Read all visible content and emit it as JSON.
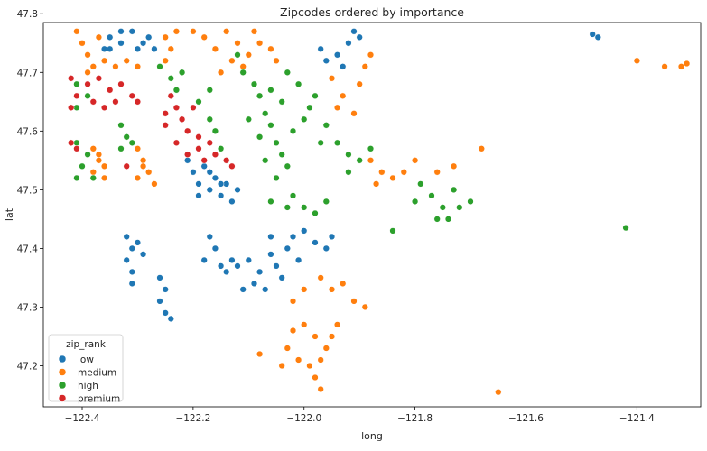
{
  "chart_data": {
    "type": "scatter",
    "title": "Zipcodes ordered by importance",
    "xlabel": "long",
    "ylabel": "lat",
    "xlim": [
      -122.47,
      -121.285
    ],
    "ylim": [
      47.13,
      47.785
    ],
    "xticks": [
      -122.4,
      -122.2,
      -122.0,
      -121.8,
      -121.6,
      -121.4
    ],
    "xtick_labels": [
      "−122.4",
      "−122.2",
      "−122.0",
      "−121.8",
      "−121.6",
      "−121.4"
    ],
    "yticks": [
      47.2,
      47.3,
      47.4,
      47.5,
      47.6,
      47.7,
      47.8
    ],
    "ytick_labels": [
      "47.2",
      "47.3",
      "47.4",
      "47.5",
      "47.6",
      "47.7",
      "47.8"
    ],
    "grid": false,
    "legend": {
      "title": "zip_rank",
      "position": "lower-left",
      "entries": [
        {
          "name": "low",
          "color": "#1f77b4"
        },
        {
          "name": "medium",
          "color": "#ff7f0e"
        },
        {
          "name": "high",
          "color": "#2ca02c"
        },
        {
          "name": "premium",
          "color": "#d62728"
        }
      ]
    },
    "series": [
      {
        "name": "low",
        "color": "#1f77b4",
        "points": [
          [
            -122.36,
            47.74
          ],
          [
            -122.35,
            47.76
          ],
          [
            -122.33,
            47.75
          ],
          [
            -122.31,
            47.77
          ],
          [
            -122.3,
            47.74
          ],
          [
            -122.28,
            47.76
          ],
          [
            -122.27,
            47.74
          ],
          [
            -122.29,
            47.75
          ],
          [
            -122.33,
            47.77
          ],
          [
            -122.35,
            47.74
          ],
          [
            -122.21,
            47.55
          ],
          [
            -122.2,
            47.53
          ],
          [
            -122.19,
            47.51
          ],
          [
            -122.18,
            47.54
          ],
          [
            -122.17,
            47.5
          ],
          [
            -122.16,
            47.52
          ],
          [
            -122.15,
            47.49
          ],
          [
            -122.14,
            47.51
          ],
          [
            -122.13,
            47.48
          ],
          [
            -122.12,
            47.5
          ],
          [
            -122.19,
            47.49
          ],
          [
            -122.17,
            47.53
          ],
          [
            -122.15,
            47.51
          ],
          [
            -122.32,
            47.42
          ],
          [
            -122.31,
            47.4
          ],
          [
            -122.32,
            47.38
          ],
          [
            -122.31,
            47.36
          ],
          [
            -122.3,
            47.41
          ],
          [
            -122.29,
            47.39
          ],
          [
            -122.31,
            47.34
          ],
          [
            -122.26,
            47.35
          ],
          [
            -122.25,
            47.33
          ],
          [
            -122.26,
            47.31
          ],
          [
            -122.25,
            47.29
          ],
          [
            -122.24,
            47.28
          ],
          [
            -122.17,
            47.42
          ],
          [
            -122.16,
            47.4
          ],
          [
            -122.18,
            47.38
          ],
          [
            -122.15,
            47.37
          ],
          [
            -122.14,
            47.36
          ],
          [
            -122.12,
            47.37
          ],
          [
            -122.1,
            47.38
          ],
          [
            -122.08,
            47.36
          ],
          [
            -122.06,
            47.39
          ],
          [
            -122.05,
            47.37
          ],
          [
            -122.04,
            47.35
          ],
          [
            -122.03,
            47.4
          ],
          [
            -122.02,
            47.42
          ],
          [
            -122.0,
            47.43
          ],
          [
            -121.98,
            47.41
          ],
          [
            -121.96,
            47.4
          ],
          [
            -122.09,
            47.34
          ],
          [
            -122.07,
            47.33
          ],
          [
            -122.11,
            47.33
          ],
          [
            -122.13,
            47.38
          ],
          [
            -122.01,
            47.38
          ],
          [
            -122.06,
            47.42
          ],
          [
            -121.95,
            47.42
          ],
          [
            -121.97,
            47.74
          ],
          [
            -121.96,
            47.72
          ],
          [
            -121.94,
            47.73
          ],
          [
            -121.92,
            47.75
          ],
          [
            -121.91,
            47.77
          ],
          [
            -121.9,
            47.76
          ],
          [
            -121.93,
            47.71
          ],
          [
            -121.48,
            47.765
          ],
          [
            -121.47,
            47.76
          ]
        ]
      },
      {
        "name": "medium",
        "color": "#ff7f0e",
        "points": [
          [
            -122.41,
            47.77
          ],
          [
            -122.4,
            47.75
          ],
          [
            -122.39,
            47.73
          ],
          [
            -122.38,
            47.71
          ],
          [
            -122.39,
            47.7
          ],
          [
            -122.37,
            47.76
          ],
          [
            -122.36,
            47.72
          ],
          [
            -122.34,
            47.71
          ],
          [
            -122.32,
            47.72
          ],
          [
            -122.3,
            47.71
          ],
          [
            -122.25,
            47.76
          ],
          [
            -122.24,
            47.74
          ],
          [
            -122.25,
            47.72
          ],
          [
            -122.23,
            47.77
          ],
          [
            -122.2,
            47.77
          ],
          [
            -122.18,
            47.76
          ],
          [
            -122.16,
            47.74
          ],
          [
            -122.14,
            47.77
          ],
          [
            -122.12,
            47.75
          ],
          [
            -122.1,
            47.73
          ],
          [
            -122.09,
            47.77
          ],
          [
            -122.08,
            47.75
          ],
          [
            -122.06,
            47.74
          ],
          [
            -122.05,
            47.72
          ],
          [
            -122.11,
            47.71
          ],
          [
            -122.13,
            47.72
          ],
          [
            -122.15,
            47.7
          ],
          [
            -122.38,
            47.57
          ],
          [
            -122.37,
            47.55
          ],
          [
            -122.38,
            47.53
          ],
          [
            -122.36,
            47.52
          ],
          [
            -122.37,
            47.56
          ],
          [
            -122.36,
            47.54
          ],
          [
            -122.3,
            47.57
          ],
          [
            -122.29,
            47.55
          ],
          [
            -122.28,
            47.53
          ],
          [
            -122.3,
            47.52
          ],
          [
            -122.27,
            47.51
          ],
          [
            -122.29,
            47.54
          ],
          [
            -121.95,
            47.69
          ],
          [
            -121.93,
            47.66
          ],
          [
            -121.9,
            47.68
          ],
          [
            -121.89,
            47.71
          ],
          [
            -121.91,
            47.63
          ],
          [
            -121.94,
            47.64
          ],
          [
            -121.88,
            47.73
          ],
          [
            -121.88,
            47.55
          ],
          [
            -121.86,
            47.53
          ],
          [
            -121.84,
            47.52
          ],
          [
            -121.82,
            47.53
          ],
          [
            -121.87,
            47.51
          ],
          [
            -121.8,
            47.55
          ],
          [
            -121.76,
            47.53
          ],
          [
            -121.73,
            47.54
          ],
          [
            -121.68,
            47.57
          ],
          [
            -122.0,
            47.33
          ],
          [
            -121.97,
            47.35
          ],
          [
            -121.95,
            47.33
          ],
          [
            -121.93,
            47.34
          ],
          [
            -121.91,
            47.31
          ],
          [
            -121.89,
            47.3
          ],
          [
            -122.02,
            47.31
          ],
          [
            -122.02,
            47.26
          ],
          [
            -122.0,
            47.27
          ],
          [
            -121.98,
            47.25
          ],
          [
            -122.03,
            47.23
          ],
          [
            -122.01,
            47.21
          ],
          [
            -121.99,
            47.2
          ],
          [
            -122.04,
            47.2
          ],
          [
            -121.97,
            47.21
          ],
          [
            -121.96,
            47.23
          ],
          [
            -121.95,
            47.25
          ],
          [
            -121.94,
            47.27
          ],
          [
            -121.98,
            47.18
          ],
          [
            -121.97,
            47.16
          ],
          [
            -122.08,
            47.22
          ],
          [
            -121.65,
            47.155
          ],
          [
            -121.4,
            47.72
          ],
          [
            -121.35,
            47.71
          ],
          [
            -121.32,
            47.71
          ],
          [
            -121.31,
            47.715
          ]
        ]
      },
      {
        "name": "high",
        "color": "#2ca02c",
        "points": [
          [
            -122.41,
            47.68
          ],
          [
            -122.39,
            47.66
          ],
          [
            -122.41,
            47.64
          ],
          [
            -122.41,
            47.58
          ],
          [
            -122.39,
            47.56
          ],
          [
            -122.4,
            47.54
          ],
          [
            -122.38,
            47.52
          ],
          [
            -122.41,
            47.52
          ],
          [
            -122.33,
            47.61
          ],
          [
            -122.32,
            47.59
          ],
          [
            -122.33,
            47.57
          ],
          [
            -122.31,
            47.58
          ],
          [
            -122.26,
            47.71
          ],
          [
            -122.24,
            47.69
          ],
          [
            -122.22,
            47.7
          ],
          [
            -122.23,
            47.67
          ],
          [
            -122.19,
            47.65
          ],
          [
            -122.17,
            47.62
          ],
          [
            -122.16,
            47.6
          ],
          [
            -122.15,
            47.57
          ],
          [
            -122.14,
            47.55
          ],
          [
            -122.17,
            47.67
          ],
          [
            -122.12,
            47.73
          ],
          [
            -122.11,
            47.7
          ],
          [
            -122.09,
            47.68
          ],
          [
            -122.08,
            47.66
          ],
          [
            -122.07,
            47.63
          ],
          [
            -122.06,
            47.61
          ],
          [
            -122.05,
            47.58
          ],
          [
            -122.04,
            47.56
          ],
          [
            -122.03,
            47.54
          ],
          [
            -122.02,
            47.6
          ],
          [
            -122.0,
            47.62
          ],
          [
            -121.99,
            47.64
          ],
          [
            -121.98,
            47.66
          ],
          [
            -122.01,
            47.68
          ],
          [
            -122.03,
            47.7
          ],
          [
            -122.06,
            47.67
          ],
          [
            -122.04,
            47.65
          ],
          [
            -122.08,
            47.59
          ],
          [
            -122.1,
            47.62
          ],
          [
            -121.97,
            47.58
          ],
          [
            -121.96,
            47.61
          ],
          [
            -122.05,
            47.52
          ],
          [
            -122.07,
            47.55
          ],
          [
            -121.94,
            47.58
          ],
          [
            -121.92,
            47.56
          ],
          [
            -121.9,
            47.55
          ],
          [
            -121.88,
            47.57
          ],
          [
            -121.92,
            47.53
          ],
          [
            -122.02,
            47.49
          ],
          [
            -122.0,
            47.47
          ],
          [
            -121.98,
            47.46
          ],
          [
            -122.03,
            47.47
          ],
          [
            -121.96,
            47.48
          ],
          [
            -122.06,
            47.48
          ],
          [
            -121.79,
            47.51
          ],
          [
            -121.77,
            47.49
          ],
          [
            -121.75,
            47.47
          ],
          [
            -121.74,
            47.45
          ],
          [
            -121.72,
            47.47
          ],
          [
            -121.7,
            47.48
          ],
          [
            -121.76,
            47.45
          ],
          [
            -121.73,
            47.5
          ],
          [
            -121.8,
            47.48
          ],
          [
            -121.84,
            47.43
          ],
          [
            -121.42,
            47.435
          ]
        ]
      },
      {
        "name": "premium",
        "color": "#d62728",
        "points": [
          [
            -122.42,
            47.69
          ],
          [
            -122.41,
            47.66
          ],
          [
            -122.42,
            47.64
          ],
          [
            -122.39,
            47.68
          ],
          [
            -122.37,
            47.69
          ],
          [
            -122.35,
            47.67
          ],
          [
            -122.33,
            47.68
          ],
          [
            -122.31,
            47.66
          ],
          [
            -122.3,
            47.65
          ],
          [
            -122.36,
            47.64
          ],
          [
            -122.34,
            47.65
          ],
          [
            -122.38,
            47.65
          ],
          [
            -122.42,
            47.58
          ],
          [
            -122.41,
            47.57
          ],
          [
            -122.24,
            47.66
          ],
          [
            -122.23,
            47.64
          ],
          [
            -122.22,
            47.62
          ],
          [
            -122.21,
            47.6
          ],
          [
            -122.23,
            47.58
          ],
          [
            -122.21,
            47.56
          ],
          [
            -122.19,
            47.59
          ],
          [
            -122.25,
            47.61
          ],
          [
            -122.25,
            47.63
          ],
          [
            -122.2,
            47.64
          ],
          [
            -122.19,
            47.57
          ],
          [
            -122.18,
            47.55
          ],
          [
            -122.16,
            47.56
          ],
          [
            -122.14,
            47.55
          ],
          [
            -122.13,
            47.54
          ],
          [
            -122.17,
            47.58
          ],
          [
            -122.32,
            47.54
          ]
        ]
      }
    ]
  }
}
